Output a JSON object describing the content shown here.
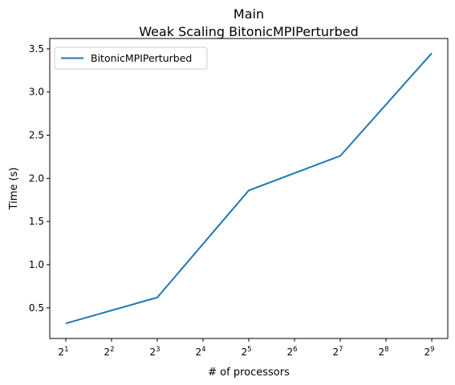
{
  "chart_data": {
    "type": "line",
    "title_line1": "Main",
    "title_line2": "Weak Scaling BitonicMPIPerturbed",
    "xlabel": "# of processors",
    "ylabel": "Time (s)",
    "xscale": "log2",
    "xlim_exp": [
      0.65,
      9.35
    ],
    "ylim": [
      0.145,
      3.62
    ],
    "x_ticks": [
      {
        "base": "2",
        "exp": "1",
        "value": 2
      },
      {
        "base": "2",
        "exp": "2",
        "value": 4
      },
      {
        "base": "2",
        "exp": "3",
        "value": 8
      },
      {
        "base": "2",
        "exp": "4",
        "value": 16
      },
      {
        "base": "2",
        "exp": "5",
        "value": 32
      },
      {
        "base": "2",
        "exp": "6",
        "value": 64
      },
      {
        "base": "2",
        "exp": "7",
        "value": 128
      },
      {
        "base": "2",
        "exp": "8",
        "value": 256
      },
      {
        "base": "2",
        "exp": "9",
        "value": 512
      }
    ],
    "y_ticks": [
      {
        "label": "0.5",
        "value": 0.5
      },
      {
        "label": "1.0",
        "value": 1.0
      },
      {
        "label": "1.5",
        "value": 1.5
      },
      {
        "label": "2.0",
        "value": 2.0
      },
      {
        "label": "2.5",
        "value": 2.5
      },
      {
        "label": "3.0",
        "value": 3.0
      },
      {
        "label": "3.5",
        "value": 3.5
      }
    ],
    "series": [
      {
        "name": "BitonicMPIPerturbed",
        "color": "#1f77b4",
        "x": [
          2,
          8,
          32,
          128,
          512
        ],
        "values": [
          0.32,
          0.62,
          1.86,
          2.26,
          3.45
        ]
      }
    ],
    "legend_position": "upper-left",
    "grid": false
  }
}
